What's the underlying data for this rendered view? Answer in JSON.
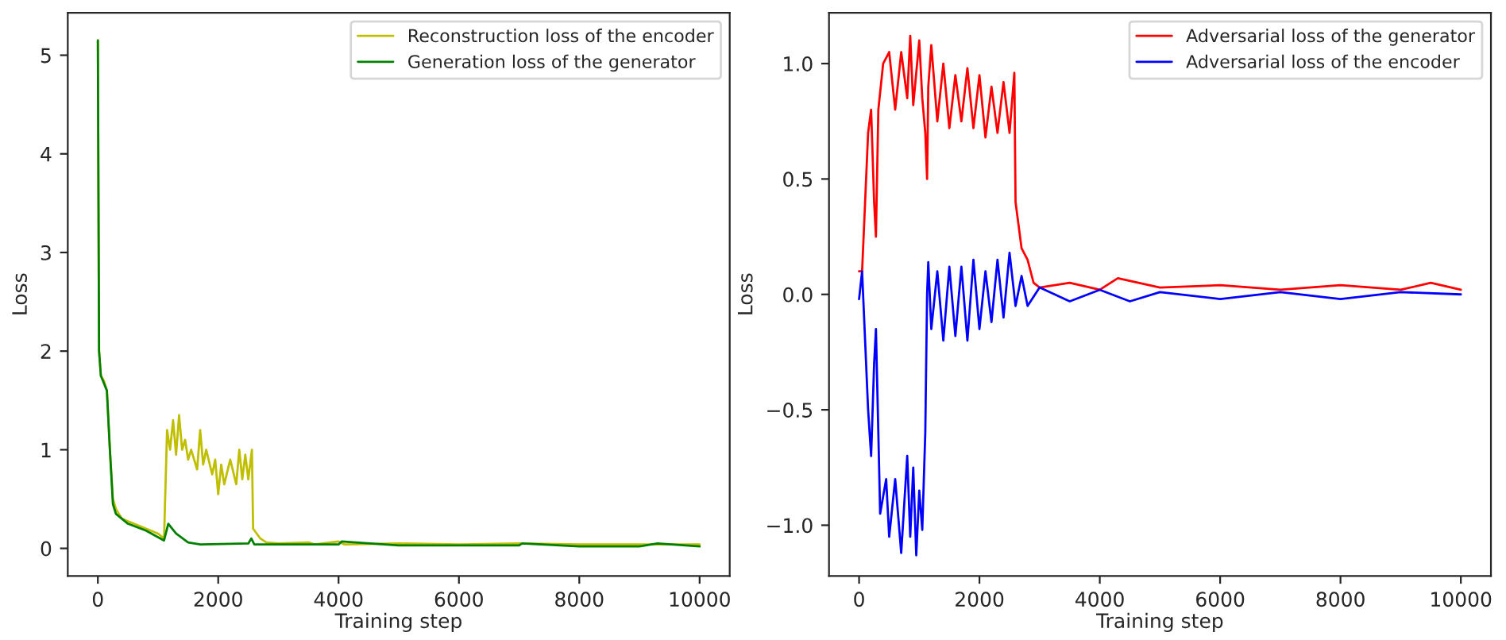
{
  "chart_data": [
    {
      "type": "line",
      "xlabel": "Training step",
      "ylabel": "Loss",
      "xlim": [
        -500,
        10500
      ],
      "ylim": [
        -0.28,
        5.43
      ],
      "xticks": [
        0,
        2000,
        4000,
        6000,
        8000,
        10000
      ],
      "yticks": [
        0,
        1,
        2,
        3,
        4,
        5
      ],
      "legend": "top right",
      "grid": false,
      "series": [
        {
          "name": "Reconstruction loss of the encoder",
          "color": "#bfbf00",
          "x": [
            0,
            20,
            50,
            100,
            150,
            200,
            250,
            300,
            400,
            600,
            800,
            1000,
            1100,
            1150,
            1200,
            1250,
            1300,
            1350,
            1400,
            1450,
            1500,
            1550,
            1650,
            1700,
            1750,
            1800,
            1900,
            1950,
            2000,
            2050,
            2100,
            2200,
            2300,
            2350,
            2400,
            2450,
            2500,
            2560,
            2580,
            2700,
            2800,
            3000,
            3500,
            3600,
            4000,
            4100,
            5000,
            6000,
            7000,
            8000,
            9000,
            10000
          ],
          "values": [
            5.15,
            2.0,
            1.75,
            1.7,
            1.6,
            1.0,
            0.5,
            0.4,
            0.3,
            0.25,
            0.2,
            0.15,
            0.1,
            1.2,
            1.0,
            1.3,
            0.95,
            1.35,
            1.0,
            1.1,
            0.9,
            1.0,
            0.8,
            1.2,
            0.85,
            1.0,
            0.75,
            0.9,
            0.55,
            0.85,
            0.65,
            0.9,
            0.65,
            1.0,
            0.7,
            0.95,
            0.7,
            1.0,
            0.2,
            0.1,
            0.06,
            0.05,
            0.06,
            0.04,
            0.07,
            0.04,
            0.05,
            0.04,
            0.05,
            0.04,
            0.04,
            0.04
          ]
        },
        {
          "name": "Generation loss of the generator",
          "color": "#008000",
          "x": [
            0,
            20,
            50,
            150,
            200,
            250,
            300,
            500,
            800,
            1100,
            1170,
            1300,
            1500,
            1700,
            2500,
            2550,
            2600,
            4000,
            4050,
            5000,
            6000,
            7000,
            7050,
            8000,
            9000,
            9300,
            10000
          ],
          "values": [
            5.15,
            2.0,
            1.75,
            1.6,
            1.0,
            0.45,
            0.35,
            0.25,
            0.18,
            0.08,
            0.25,
            0.15,
            0.06,
            0.04,
            0.05,
            0.1,
            0.04,
            0.04,
            0.07,
            0.03,
            0.03,
            0.03,
            0.05,
            0.02,
            0.02,
            0.05,
            0.02
          ]
        }
      ]
    },
    {
      "type": "line",
      "xlabel": "Training step",
      "ylabel": "Loss",
      "xlim": [
        -500,
        10500
      ],
      "ylim": [
        -1.22,
        1.22
      ],
      "xticks": [
        0,
        2000,
        4000,
        6000,
        8000,
        10000
      ],
      "yticks": [
        {
          "value": -1.0,
          "label": "−1.0"
        },
        {
          "value": -0.5,
          "label": "−0.5"
        },
        {
          "value": 0.0,
          "label": "0.0"
        },
        {
          "value": 0.5,
          "label": "0.5"
        },
        {
          "value": 1.0,
          "label": "1.0"
        }
      ],
      "legend": "top right",
      "grid": false,
      "series": [
        {
          "name": "Adversarial loss of the generator",
          "color": "#ff0000",
          "x": [
            0,
            50,
            100,
            150,
            200,
            250,
            280,
            320,
            400,
            500,
            600,
            700,
            800,
            850,
            900,
            1000,
            1050,
            1100,
            1130,
            1150,
            1200,
            1300,
            1400,
            1500,
            1600,
            1700,
            1800,
            1900,
            2000,
            2100,
            2200,
            2300,
            2400,
            2500,
            2580,
            2600,
            2700,
            2800,
            2900,
            3000,
            3500,
            4000,
            4300,
            5000,
            6000,
            7000,
            8000,
            9000,
            9500,
            10000
          ],
          "values": [
            0.1,
            0.1,
            0.4,
            0.7,
            0.8,
            0.4,
            0.25,
            0.8,
            1.0,
            1.05,
            0.8,
            1.05,
            0.85,
            1.12,
            0.82,
            1.1,
            0.85,
            0.7,
            0.5,
            0.9,
            1.08,
            0.75,
            1.0,
            0.72,
            0.95,
            0.75,
            0.98,
            0.72,
            0.95,
            0.68,
            0.9,
            0.7,
            0.92,
            0.7,
            0.96,
            0.4,
            0.2,
            0.15,
            0.05,
            0.03,
            0.05,
            0.02,
            0.07,
            0.03,
            0.04,
            0.02,
            0.04,
            0.02,
            0.05,
            0.02
          ]
        },
        {
          "name": "Adversarial loss of the encoder",
          "color": "#0000ff",
          "x": [
            0,
            50,
            100,
            150,
            200,
            250,
            280,
            320,
            350,
            450,
            500,
            600,
            700,
            800,
            850,
            900,
            950,
            1000,
            1050,
            1100,
            1130,
            1150,
            1200,
            1300,
            1400,
            1500,
            1600,
            1700,
            1800,
            1900,
            2000,
            2100,
            2200,
            2300,
            2400,
            2500,
            2600,
            2700,
            2800,
            3000,
            3500,
            4000,
            4500,
            5000,
            6000,
            7000,
            8000,
            9000,
            10000
          ],
          "values": [
            -0.02,
            0.1,
            -0.2,
            -0.5,
            -0.7,
            -0.3,
            -0.15,
            -0.6,
            -0.95,
            -0.8,
            -1.05,
            -0.8,
            -1.12,
            -0.7,
            -1.05,
            -0.75,
            -1.13,
            -0.85,
            -1.02,
            -0.6,
            0.0,
            0.14,
            -0.15,
            0.1,
            -0.2,
            0.12,
            -0.18,
            0.12,
            -0.2,
            0.15,
            -0.15,
            0.1,
            -0.12,
            0.15,
            -0.1,
            0.18,
            -0.05,
            0.08,
            -0.05,
            0.03,
            -0.03,
            0.02,
            -0.03,
            0.01,
            -0.02,
            0.01,
            -0.02,
            0.01,
            0.0
          ]
        }
      ]
    }
  ]
}
